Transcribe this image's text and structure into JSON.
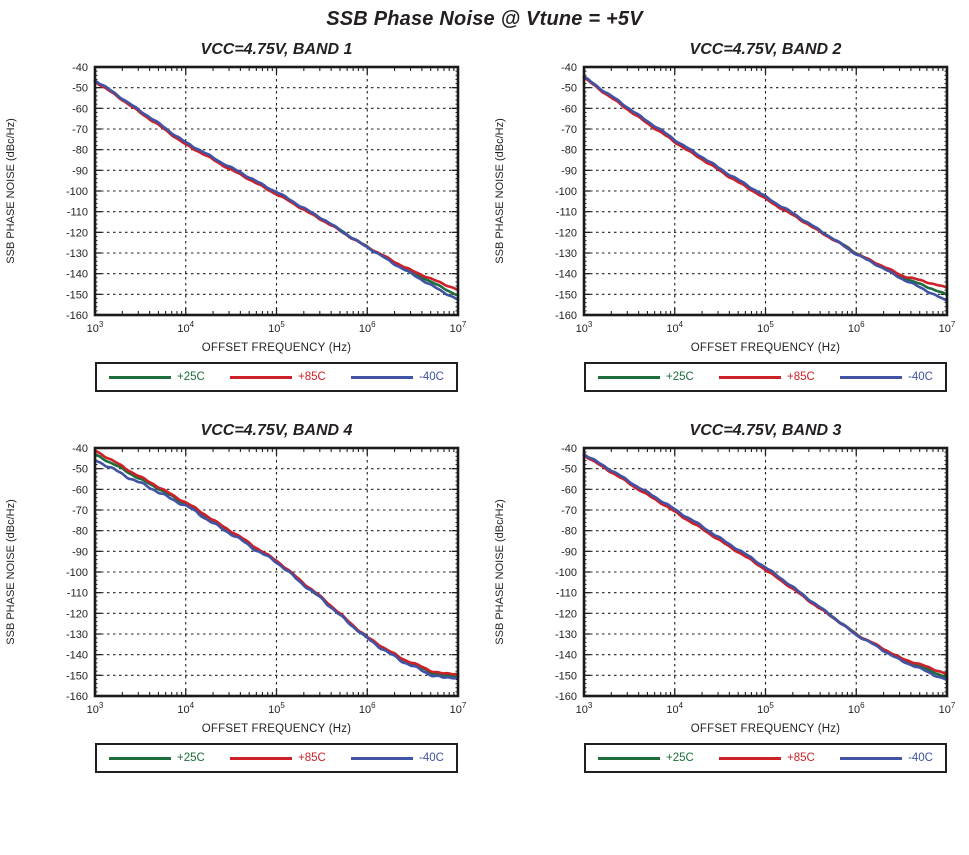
{
  "page_title": "SSB Phase Noise @ Vtune = +5V",
  "legend": [
    {
      "label": "+25C",
      "color": "#1c6e3b"
    },
    {
      "label": "+85C",
      "color": "#cc2128"
    },
    {
      "label": "-40C",
      "color": "#4053a5"
    }
  ],
  "style": {
    "axis_color": "#231f20",
    "grid_dash": "2.5 3.5",
    "curve_width": 2.6
  },
  "chart_data": [
    {
      "type": "line",
      "title": "VCC=4.75V, BAND 1",
      "xlabel": "OFFSET FREQUENCY (Hz)",
      "ylabel": "SSB PHASE NOISE (dBc/Hz)",
      "xscale": "log",
      "xlim_log": [
        3,
        7
      ],
      "xticks": [
        "10^3",
        "10^4",
        "10^5",
        "10^6",
        "10^7"
      ],
      "ylim": [
        -160,
        -40
      ],
      "ystep": 10,
      "grid": true,
      "series": [
        {
          "name": "+25C",
          "color": "#1c6e3b",
          "noise": 0.45,
          "points": [
            [
              3,
              -46.5
            ],
            [
              3.5,
              -61.5
            ],
            [
              4,
              -76.8
            ],
            [
              4.5,
              -89.0
            ],
            [
              5,
              -100.8
            ],
            [
              5.5,
              -113.5
            ],
            [
              6,
              -127.0
            ],
            [
              6.5,
              -139.5
            ],
            [
              7,
              -150.5
            ]
          ]
        },
        {
          "name": "+85C",
          "color": "#cc2128",
          "noise": 0.45,
          "points": [
            [
              3,
              -46.8
            ],
            [
              3.5,
              -62.0
            ],
            [
              4,
              -77.5
            ],
            [
              4.5,
              -89.7
            ],
            [
              5,
              -101.5
            ],
            [
              5.5,
              -114.0
            ],
            [
              6,
              -127.2
            ],
            [
              6.5,
              -138.8
            ],
            [
              7,
              -147.8
            ]
          ]
        },
        {
          "name": "-40C",
          "color": "#4053a5",
          "noise": 0.5,
          "points": [
            [
              3,
              -46.3
            ],
            [
              3.5,
              -61.2
            ],
            [
              4,
              -76.5
            ],
            [
              4.5,
              -88.7
            ],
            [
              5,
              -100.5
            ],
            [
              5.5,
              -113.3
            ],
            [
              6,
              -127.3
            ],
            [
              6.5,
              -140.5
            ],
            [
              7,
              -152.8
            ]
          ]
        }
      ]
    },
    {
      "type": "line",
      "title": "VCC=4.75V, BAND 2",
      "xlabel": "OFFSET FREQUENCY (Hz)",
      "ylabel": "SSB PHASE NOISE (dBc/Hz)",
      "xscale": "log",
      "xlim_log": [
        3,
        7
      ],
      "xticks": [
        "10^3",
        "10^4",
        "10^5",
        "10^6",
        "10^7"
      ],
      "ylim": [
        -160,
        -40
      ],
      "ystep": 10,
      "grid": true,
      "series": [
        {
          "name": "+25C",
          "color": "#1c6e3b",
          "noise": 0.45,
          "points": [
            [
              3,
              -45.0
            ],
            [
              3.5,
              -60.5
            ],
            [
              4,
              -75.5
            ],
            [
              4.5,
              -89.5
            ],
            [
              5,
              -103.0
            ],
            [
              5.5,
              -116.5
            ],
            [
              6,
              -130.0
            ],
            [
              6.5,
              -141.5
            ],
            [
              7,
              -150.3
            ]
          ]
        },
        {
          "name": "+85C",
          "color": "#cc2128",
          "noise": 0.45,
          "points": [
            [
              3,
              -45.3
            ],
            [
              3.5,
              -61.2
            ],
            [
              4,
              -76.3
            ],
            [
              4.5,
              -90.3
            ],
            [
              5,
              -103.8
            ],
            [
              5.5,
              -117.0
            ],
            [
              6,
              -130.3
            ],
            [
              6.5,
              -140.8
            ],
            [
              7,
              -146.8
            ]
          ]
        },
        {
          "name": "-40C",
          "color": "#4053a5",
          "noise": 0.5,
          "points": [
            [
              3,
              -44.8
            ],
            [
              3.5,
              -60.2
            ],
            [
              4,
              -75.2
            ],
            [
              4.5,
              -89.2
            ],
            [
              5,
              -102.7
            ],
            [
              5.5,
              -116.2
            ],
            [
              6,
              -130.5
            ],
            [
              6.5,
              -142.3
            ],
            [
              7,
              -153.2
            ]
          ]
        }
      ]
    },
    {
      "type": "line",
      "title": "VCC=4.75V, BAND 4",
      "xlabel": "OFFSET FREQUENCY (Hz)",
      "ylabel": "SSB PHASE NOISE (dBc/Hz)",
      "xscale": "log",
      "xlim_log": [
        3,
        7
      ],
      "xticks": [
        "10^3",
        "10^4",
        "10^5",
        "10^6",
        "10^7"
      ],
      "ylim": [
        -160,
        -40
      ],
      "ystep": 10,
      "grid": true,
      "series": [
        {
          "name": "+25C",
          "color": "#1c6e3b",
          "noise": 0.5,
          "points": [
            [
              3,
              -43.0
            ],
            [
              3.5,
              -55.0
            ],
            [
              4,
              -67.0
            ],
            [
              4.5,
              -81.0
            ],
            [
              5,
              -95.0
            ],
            [
              5.5,
              -113.0
            ],
            [
              6,
              -132.0
            ],
            [
              6.4,
              -143.0
            ],
            [
              6.7,
              -148.5
            ],
            [
              6.85,
              -150.3
            ],
            [
              7,
              -150.3
            ]
          ]
        },
        {
          "name": "+85C",
          "color": "#cc2128",
          "noise": 0.5,
          "points": [
            [
              3,
              -41.2
            ],
            [
              3.5,
              -54.0
            ],
            [
              4,
              -66.3
            ],
            [
              4.5,
              -80.3
            ],
            [
              5,
              -94.5
            ],
            [
              5.5,
              -112.5
            ],
            [
              6,
              -131.7
            ],
            [
              6.4,
              -142.3
            ],
            [
              6.7,
              -147.7
            ],
            [
              6.85,
              -149.3
            ],
            [
              7,
              -149.3
            ]
          ]
        },
        {
          "name": "-40C",
          "color": "#4053a5",
          "noise": 0.8,
          "points": [
            [
              3,
              -45.8
            ],
            [
              3.5,
              -57.0
            ],
            [
              4,
              -68.0
            ],
            [
              4.5,
              -81.7
            ],
            [
              5,
              -95.3
            ],
            [
              5.5,
              -113.2
            ],
            [
              6,
              -132.3
            ],
            [
              6.4,
              -143.7
            ],
            [
              6.7,
              -149.5
            ],
            [
              6.85,
              -151.5
            ],
            [
              7,
              -150.8
            ]
          ]
        }
      ]
    },
    {
      "type": "line",
      "title": "VCC=4.75V, BAND 3",
      "xlabel": "OFFSET FREQUENCY (Hz)",
      "ylabel": "SSB PHASE NOISE (dBc/Hz)",
      "xscale": "log",
      "xlim_log": [
        3,
        7
      ],
      "xticks": [
        "10^3",
        "10^4",
        "10^5",
        "10^6",
        "10^7"
      ],
      "ylim": [
        -160,
        -40
      ],
      "ystep": 10,
      "grid": true,
      "series": [
        {
          "name": "+25C",
          "color": "#1c6e3b",
          "noise": 0.45,
          "points": [
            [
              3,
              -43.0
            ],
            [
              3.5,
              -56.5
            ],
            [
              4,
              -70.0
            ],
            [
              4.5,
              -84.0
            ],
            [
              5,
              -98.0
            ],
            [
              5.5,
              -114.0
            ],
            [
              6,
              -130.0
            ],
            [
              6.5,
              -142.5
            ],
            [
              7,
              -151.0
            ]
          ]
        },
        {
          "name": "+85C",
          "color": "#cc2128",
          "noise": 0.45,
          "points": [
            [
              3,
              -43.4
            ],
            [
              3.5,
              -57.2
            ],
            [
              4,
              -70.8
            ],
            [
              4.5,
              -84.8
            ],
            [
              5,
              -98.8
            ],
            [
              5.5,
              -114.5
            ],
            [
              6,
              -130.2
            ],
            [
              6.5,
              -141.8
            ],
            [
              7,
              -149.2
            ]
          ]
        },
        {
          "name": "-40C",
          "color": "#4053a5",
          "noise": 0.55,
          "points": [
            [
              3,
              -42.8
            ],
            [
              3.5,
              -56.2
            ],
            [
              4,
              -69.6
            ],
            [
              4.5,
              -83.6
            ],
            [
              5,
              -97.6
            ],
            [
              5.5,
              -113.8
            ],
            [
              6,
              -130.4
            ],
            [
              6.5,
              -143.0
            ],
            [
              7,
              -152.3
            ]
          ]
        }
      ]
    }
  ]
}
